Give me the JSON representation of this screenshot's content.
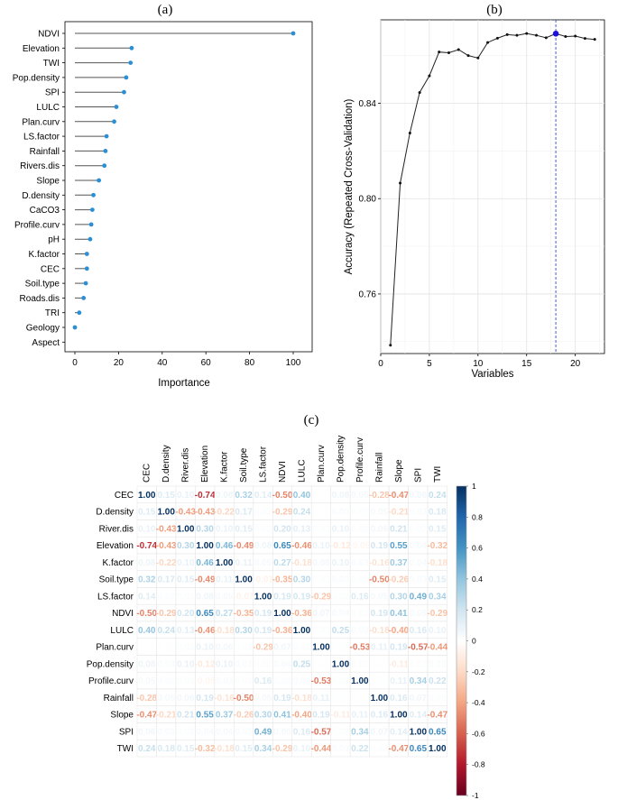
{
  "chart_data": [
    {
      "panel": "(a)",
      "type": "lollipop",
      "xlabel": "Importance",
      "ylabel": "",
      "xlim": [
        0,
        100
      ],
      "xticks": [
        0,
        20,
        40,
        60,
        80,
        100
      ],
      "categories": [
        "NDVI",
        "Elevation",
        "TWI",
        "Pop.density",
        "SPI",
        "LULC",
        "Plan.curv",
        "LS.factor",
        "Rainfall",
        "Rivers.dis",
        "Slope",
        "D.density",
        "CaCO3",
        "Profile.curv",
        "pH",
        "K.factor",
        "CEC",
        "Soil.type",
        "Roads.dis",
        "TRI",
        "Geology",
        "Aspect"
      ],
      "values": [
        100,
        26,
        25.5,
        23.5,
        22.5,
        19,
        18,
        14.5,
        14,
        13.5,
        11,
        8.5,
        8,
        7.5,
        7,
        5.5,
        5.5,
        5,
        4,
        2,
        0,
        null
      ],
      "point_color": "#2b8fd6",
      "grid": false
    },
    {
      "panel": "(b)",
      "type": "line",
      "xlabel": "Variables",
      "ylabel": "Accuracy (Repeated Cross-Validation)",
      "xlim": [
        0,
        23
      ],
      "ylim": [
        0.735,
        0.875
      ],
      "xticks": [
        0,
        5,
        10,
        15,
        20
      ],
      "yticks": [
        0.76,
        0.8,
        0.84
      ],
      "x": [
        1,
        2,
        3,
        4,
        5,
        6,
        7,
        8,
        9,
        10,
        11,
        12,
        13,
        14,
        15,
        16,
        17,
        18,
        19,
        20,
        21,
        22
      ],
      "y": [
        0.7385,
        0.8065,
        0.8275,
        0.8445,
        0.8515,
        0.8615,
        0.8612,
        0.8625,
        0.86,
        0.859,
        0.8655,
        0.8673,
        0.8688,
        0.8685,
        0.8693,
        0.8685,
        0.8675,
        0.8692,
        0.868,
        0.8682,
        0.8672,
        0.8668
      ],
      "best_x": 18,
      "best_point_color": "#1a10e0",
      "vline_color": "#4a5fd0",
      "grid": true
    },
    {
      "panel": "(c)",
      "type": "heatmap",
      "variables": [
        "CEC",
        "D.density",
        "River.dis",
        "Elevation",
        "K.factor",
        "Soil.type",
        "LS.factor",
        "NDVI",
        "LULC",
        "Plan.curv",
        "Pop.density",
        "Profile.curv",
        "Rainfall",
        "Slope",
        "SPI",
        "TWI"
      ],
      "matrix": [
        [
          1.0,
          0.15,
          0.1,
          -0.74,
          0.08,
          0.32,
          0.14,
          -0.5,
          0.4,
          0.0,
          0.08,
          0.05,
          -0.28,
          -0.47,
          0.06,
          0.24
        ],
        [
          0.15,
          1.0,
          -0.43,
          -0.43,
          -0.22,
          0.17,
          0.02,
          -0.29,
          0.24,
          0.01,
          0.03,
          0.02,
          0.05,
          -0.21,
          0.03,
          0.18
        ],
        [
          0.1,
          -0.43,
          1.0,
          0.3,
          0.1,
          0.15,
          0.02,
          0.2,
          0.13,
          0.02,
          0.1,
          0.02,
          0.06,
          0.21,
          0.02,
          0.15
        ],
        [
          -0.74,
          -0.43,
          0.3,
          1.0,
          0.46,
          -0.49,
          0.08,
          0.65,
          -0.46,
          0.1,
          -0.12,
          -0.05,
          0.19,
          0.55,
          0.04,
          -0.32
        ],
        [
          0.08,
          -0.22,
          0.1,
          0.46,
          1.0,
          0.11,
          0.05,
          0.27,
          -0.18,
          0.06,
          0.1,
          0.03,
          -0.16,
          0.37,
          0.04,
          -0.18
        ],
        [
          0.32,
          0.17,
          0.15,
          -0.49,
          0.11,
          1.0,
          -0.07,
          -0.35,
          0.3,
          0.02,
          0.03,
          0.02,
          -0.5,
          -0.26,
          0.03,
          0.15
        ],
        [
          0.14,
          0.02,
          0.02,
          0.08,
          0.05,
          -0.07,
          1.0,
          0.19,
          0.19,
          -0.29,
          0.02,
          0.16,
          0.05,
          0.3,
          0.49,
          0.34
        ],
        [
          -0.5,
          -0.29,
          0.2,
          0.65,
          0.27,
          -0.35,
          0.19,
          1.0,
          -0.36,
          0.07,
          0.04,
          0.02,
          0.19,
          0.41,
          0.05,
          -0.29
        ],
        [
          0.4,
          0.24,
          0.13,
          -0.46,
          -0.18,
          0.3,
          0.19,
          -0.36,
          1.0,
          0.02,
          0.25,
          0.03,
          -0.18,
          -0.4,
          0.16,
          0.1
        ],
        [
          0.0,
          0.01,
          0.02,
          0.1,
          0.06,
          0.02,
          -0.29,
          0.07,
          0.02,
          1.0,
          0.01,
          -0.53,
          0.11,
          0.19,
          -0.57,
          -0.44
        ],
        [
          0.08,
          0.03,
          0.1,
          -0.12,
          0.1,
          0.03,
          0.02,
          0.04,
          0.25,
          0.01,
          1.0,
          0.02,
          0.01,
          -0.11,
          0.02,
          0.03
        ],
        [
          0.05,
          0.02,
          0.02,
          -0.05,
          0.03,
          0.02,
          0.16,
          0.02,
          0.03,
          -0.53,
          0.02,
          1.0,
          0.01,
          0.11,
          0.34,
          0.22
        ],
        [
          -0.28,
          0.05,
          0.06,
          0.19,
          -0.16,
          -0.5,
          0.05,
          0.19,
          -0.18,
          0.11,
          0.01,
          0.01,
          1.0,
          0.16,
          0.07,
          0.02
        ],
        [
          -0.47,
          -0.21,
          0.21,
          0.55,
          0.37,
          -0.26,
          0.3,
          0.41,
          -0.4,
          0.19,
          -0.11,
          0.11,
          0.16,
          1.0,
          0.14,
          -0.47
        ],
        [
          0.06,
          0.03,
          0.02,
          0.04,
          0.04,
          0.03,
          0.49,
          0.05,
          0.16,
          -0.57,
          0.02,
          0.34,
          0.07,
          0.14,
          1.0,
          0.65
        ],
        [
          0.24,
          0.18,
          0.15,
          -0.32,
          -0.18,
          0.15,
          0.34,
          -0.29,
          0.1,
          -0.44,
          0.03,
          0.22,
          0.02,
          -0.47,
          0.65,
          1.0
        ]
      ],
      "colorbar_ticks": [
        1,
        0.8,
        0.6,
        0.4,
        0.2,
        0,
        -0.2,
        -0.4,
        -0.6,
        -0.8,
        -1
      ],
      "colorscale": [
        "#67001f",
        "#b2182b",
        "#d6604d",
        "#f4a582",
        "#fddbc7",
        "#ffffff",
        "#d1e5f0",
        "#92c5de",
        "#4393c3",
        "#2166ac",
        "#053061"
      ]
    }
  ]
}
